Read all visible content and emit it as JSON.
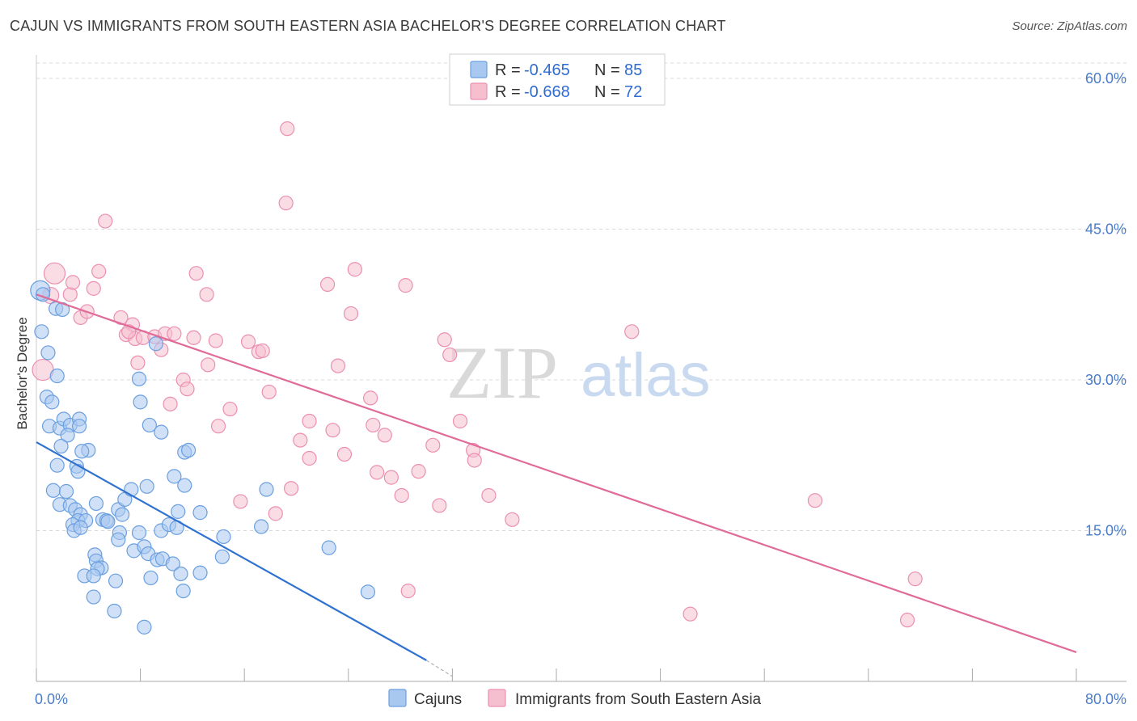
{
  "title": "CAJUN VS IMMIGRANTS FROM SOUTH EASTERN ASIA BACHELOR'S DEGREE CORRELATION CHART",
  "source": "Source: ZipAtlas.com",
  "watermark": {
    "zip": "ZIP",
    "atlas": "atlas"
  },
  "colors": {
    "blue_fill": "#a9c8f0",
    "blue_stroke": "#6a9fe0",
    "blue_line": "#2f72d0",
    "pink_fill": "#f6bfd0",
    "pink_stroke": "#ec8fb0",
    "pink_line": "#e06b98",
    "grid": "#d8d8d8",
    "tick_label": "#4a7cc9"
  },
  "legend": {
    "series": [
      {
        "r_label": "R = ",
        "r_value": "-0.465",
        "n_label": "N = ",
        "n_value": "85"
      },
      {
        "r_label": "R = ",
        "r_value": "-0.668",
        "n_label": "N = ",
        "n_value": "72"
      }
    ]
  },
  "chart_data": {
    "type": "scatter",
    "title": "CAJUN VS IMMIGRANTS FROM SOUTH EASTERN ASIA BACHELOR'S DEGREE CORRELATION CHART",
    "xlabel": "",
    "ylabel": "Bachelor's Degree",
    "xlim": [
      0,
      80
    ],
    "ylim": [
      0,
      60
    ],
    "x_tick_labels": [
      "0.0%",
      "80.0%"
    ],
    "y_tick_labels": [
      "15.0%",
      "30.0%",
      "45.0%",
      "60.0%"
    ],
    "y_ticks": [
      15,
      30,
      45,
      60
    ],
    "grid": true,
    "legend_position": "top-center",
    "series": [
      {
        "name": "Cajuns",
        "trend": {
          "x": [
            0,
            30
          ],
          "y": [
            23.8,
            2.1
          ]
        },
        "trend_dash": {
          "x": [
            30,
            32
          ],
          "y": [
            2.1,
            0.5
          ]
        },
        "points": [
          [
            0.3,
            38.9
          ],
          [
            0.5,
            38.5
          ],
          [
            0.4,
            34.8
          ],
          [
            0.9,
            32.7
          ],
          [
            1.5,
            37.1
          ],
          [
            2.0,
            37.0
          ],
          [
            1.6,
            30.4
          ],
          [
            0.8,
            28.3
          ],
          [
            1.2,
            27.8
          ],
          [
            1.0,
            25.4
          ],
          [
            1.8,
            25.2
          ],
          [
            2.1,
            26.1
          ],
          [
            2.6,
            25.5
          ],
          [
            2.4,
            24.5
          ],
          [
            1.9,
            23.4
          ],
          [
            3.3,
            26.1
          ],
          [
            3.3,
            25.4
          ],
          [
            4.0,
            23.0
          ],
          [
            3.5,
            22.9
          ],
          [
            3.1,
            21.4
          ],
          [
            3.2,
            20.9
          ],
          [
            1.3,
            19.0
          ],
          [
            2.3,
            18.9
          ],
          [
            1.8,
            17.6
          ],
          [
            2.6,
            17.5
          ],
          [
            3.0,
            17.1
          ],
          [
            3.4,
            16.6
          ],
          [
            4.6,
            17.7
          ],
          [
            3.2,
            16.0
          ],
          [
            3.8,
            16.0
          ],
          [
            2.8,
            15.6
          ],
          [
            2.9,
            15.0
          ],
          [
            5.1,
            16.1
          ],
          [
            5.4,
            16.0
          ],
          [
            5.5,
            15.9
          ],
          [
            6.3,
            17.1
          ],
          [
            6.6,
            16.6
          ],
          [
            6.8,
            18.1
          ],
          [
            7.3,
            19.1
          ],
          [
            8.5,
            19.4
          ],
          [
            6.4,
            14.8
          ],
          [
            6.3,
            14.1
          ],
          [
            7.5,
            13.0
          ],
          [
            8.3,
            13.4
          ],
          [
            7.9,
            14.8
          ],
          [
            8.6,
            12.7
          ],
          [
            9.3,
            12.1
          ],
          [
            9.7,
            12.2
          ],
          [
            10.5,
            11.7
          ],
          [
            9.6,
            15.0
          ],
          [
            10.2,
            15.6
          ],
          [
            10.8,
            15.3
          ],
          [
            10.9,
            16.9
          ],
          [
            11.4,
            19.5
          ],
          [
            11.4,
            22.8
          ],
          [
            11.7,
            23.0
          ],
          [
            10.6,
            20.4
          ],
          [
            12.6,
            16.8
          ],
          [
            14.4,
            14.4
          ],
          [
            14.3,
            12.4
          ],
          [
            17.3,
            15.4
          ],
          [
            17.7,
            19.1
          ],
          [
            8.0,
            27.8
          ],
          [
            7.9,
            30.1
          ],
          [
            8.7,
            25.5
          ],
          [
            9.6,
            24.8
          ],
          [
            4.5,
            12.6
          ],
          [
            4.6,
            12.0
          ],
          [
            5.0,
            11.3
          ],
          [
            4.7,
            11.2
          ],
          [
            3.7,
            10.5
          ],
          [
            4.4,
            10.5
          ],
          [
            6.1,
            10.0
          ],
          [
            8.8,
            10.3
          ],
          [
            11.1,
            10.7
          ],
          [
            12.6,
            10.8
          ],
          [
            11.3,
            9.0
          ],
          [
            4.4,
            8.4
          ],
          [
            6.0,
            7.0
          ],
          [
            8.3,
            5.4
          ],
          [
            22.5,
            13.3
          ],
          [
            25.5,
            8.9
          ],
          [
            9.2,
            33.6
          ],
          [
            3.4,
            15.3
          ],
          [
            1.6,
            21.5
          ]
        ]
      },
      {
        "name": "Immigrants from South Eastern Asia",
        "trend": {
          "x": [
            0,
            80
          ],
          "y": [
            38.5,
            2.9
          ]
        },
        "points": [
          [
            1.4,
            40.6
          ],
          [
            1.1,
            38.4
          ],
          [
            2.6,
            38.5
          ],
          [
            2.8,
            39.7
          ],
          [
            4.4,
            39.1
          ],
          [
            0.5,
            31.0
          ],
          [
            4.8,
            40.8
          ],
          [
            5.3,
            45.8
          ],
          [
            6.5,
            36.2
          ],
          [
            7.4,
            35.5
          ],
          [
            3.4,
            36.2
          ],
          [
            3.9,
            36.8
          ],
          [
            6.9,
            34.5
          ],
          [
            7.6,
            34.1
          ],
          [
            8.2,
            34.2
          ],
          [
            9.1,
            34.3
          ],
          [
            9.6,
            33.0
          ],
          [
            9.9,
            34.6
          ],
          [
            10.6,
            34.6
          ],
          [
            12.1,
            34.2
          ],
          [
            13.8,
            33.9
          ],
          [
            16.3,
            33.8
          ],
          [
            17.1,
            32.8
          ],
          [
            17.4,
            32.9
          ],
          [
            7.8,
            31.7
          ],
          [
            13.2,
            31.5
          ],
          [
            11.3,
            30.0
          ],
          [
            11.6,
            29.1
          ],
          [
            17.9,
            28.8
          ],
          [
            10.3,
            27.6
          ],
          [
            14.9,
            27.1
          ],
          [
            14.0,
            25.4
          ],
          [
            12.3,
            40.6
          ],
          [
            13.1,
            38.5
          ],
          [
            19.3,
            55.0
          ],
          [
            19.2,
            47.6
          ],
          [
            22.4,
            39.5
          ],
          [
            24.5,
            41.0
          ],
          [
            28.4,
            39.4
          ],
          [
            24.2,
            36.6
          ],
          [
            31.4,
            34.0
          ],
          [
            31.8,
            32.5
          ],
          [
            23.2,
            31.4
          ],
          [
            25.7,
            28.2
          ],
          [
            21.0,
            25.9
          ],
          [
            22.8,
            25.0
          ],
          [
            25.9,
            25.5
          ],
          [
            32.6,
            25.9
          ],
          [
            20.3,
            24.0
          ],
          [
            26.8,
            24.5
          ],
          [
            30.5,
            23.5
          ],
          [
            21.0,
            22.2
          ],
          [
            23.7,
            22.6
          ],
          [
            26.2,
            20.8
          ],
          [
            27.3,
            20.3
          ],
          [
            29.4,
            20.9
          ],
          [
            33.6,
            23.0
          ],
          [
            33.7,
            22.0
          ],
          [
            19.6,
            19.2
          ],
          [
            28.1,
            18.5
          ],
          [
            34.8,
            18.5
          ],
          [
            15.7,
            17.9
          ],
          [
            18.4,
            16.7
          ],
          [
            31.0,
            17.5
          ],
          [
            36.6,
            16.1
          ],
          [
            45.8,
            34.8
          ],
          [
            59.9,
            18.0
          ],
          [
            28.6,
            9.0
          ],
          [
            50.3,
            6.7
          ],
          [
            67.6,
            10.2
          ],
          [
            67.0,
            6.1
          ],
          [
            7.1,
            34.8
          ]
        ]
      }
    ]
  }
}
